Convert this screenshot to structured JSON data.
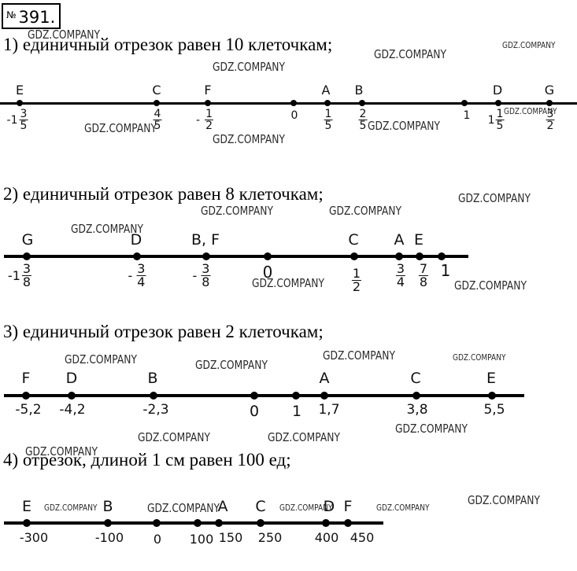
{
  "badge": {
    "symbol": "№",
    "number": "391."
  },
  "watermark": "GDZ.COMPANY",
  "sections": [
    {
      "heading": "1) единичный отрезок равен 10 клеточкам;",
      "letters": [
        "E",
        "C",
        "F",
        "A",
        "B",
        "D",
        "G"
      ],
      "ticks": [
        {
          "sign": "-",
          "whole": "1",
          "num": "3",
          "den": "5"
        },
        {
          "sign": "",
          "whole": "",
          "num": "4",
          "den": "5"
        },
        {
          "sign": "-",
          "whole": "",
          "num": "1",
          "den": "2"
        },
        {
          "text": "0"
        },
        {
          "sign": "",
          "whole": "",
          "num": "1",
          "den": "5"
        },
        {
          "sign": "",
          "whole": "",
          "num": "2",
          "den": "5"
        },
        {
          "text": "1"
        },
        {
          "sign": "",
          "whole": "1",
          "num": "1",
          "den": "5"
        },
        {
          "sign": "",
          "whole": "",
          "num": "3",
          "den": "2"
        }
      ]
    },
    {
      "heading": "2) единичный отрезок равен 8 клеточкам;",
      "letters": [
        "G",
        "D",
        "B, F",
        "C",
        "A",
        "E"
      ],
      "ticks": [
        {
          "sign": "-",
          "whole": "1",
          "num": "3",
          "den": "8"
        },
        {
          "sign": "-",
          "whole": "",
          "num": "3",
          "den": "4"
        },
        {
          "sign": "-",
          "whole": "",
          "num": "3",
          "den": "8"
        },
        {
          "text": "0"
        },
        {
          "sign": "",
          "whole": "",
          "num": "1",
          "den": "2"
        },
        {
          "sign": "",
          "whole": "",
          "num": "3",
          "den": "4"
        },
        {
          "sign": "",
          "whole": "",
          "num": "7",
          "den": "8"
        },
        {
          "text": "1"
        }
      ]
    },
    {
      "heading": "3) единичный отрезок равен 2 клеточкам;",
      "letters": [
        "F",
        "D",
        "B",
        "A",
        "C",
        "E"
      ],
      "ticks": [
        "-5,2",
        "-4,2",
        "-2,3",
        "0",
        "1",
        "1,7",
        "3,8",
        "5,5"
      ]
    },
    {
      "heading": "4) отрезок, длиной 1 см равен 100 ед;",
      "letters": [
        "E",
        "B",
        "A",
        "C",
        "D",
        "F"
      ],
      "ticks": [
        "-300",
        "-100",
        "0",
        "100",
        "150",
        "250",
        "400",
        "450"
      ]
    }
  ]
}
